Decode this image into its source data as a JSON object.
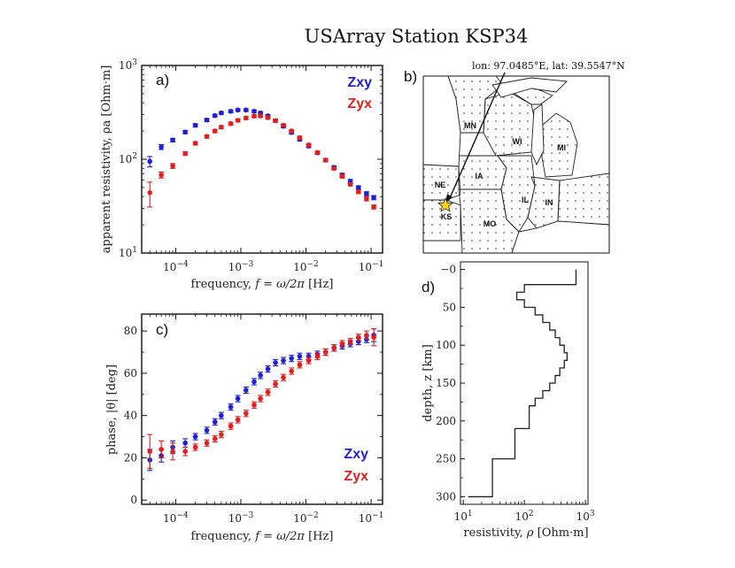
{
  "figure_title": "USArray Station KSP34",
  "colors": {
    "zxy": "#1f1fd6",
    "zyx": "#e11f1f"
  },
  "map": {
    "label": "b)",
    "coord_text": "lon: 97.0485°E, lat: 39.5547°N",
    "states": [
      "MN",
      "WI",
      "MI",
      "IA",
      "NE",
      "IL",
      "IN",
      "KS",
      "MO"
    ]
  },
  "chart_data": [
    {
      "id": "resistivity",
      "panel_label": "a)",
      "type": "scatter",
      "xscale": "log",
      "yscale": "log",
      "xlim": [
        3e-05,
        0.15
      ],
      "ylim": [
        10,
        1000
      ],
      "xticks": [
        0.0001,
        0.001,
        0.01,
        0.1
      ],
      "xtick_labels": [
        "10^-4",
        "10^-3",
        "10^-2",
        "10^-1"
      ],
      "yticks": [
        10,
        100,
        1000
      ],
      "ytick_labels": [
        "10^1",
        "10^2",
        "10^3"
      ],
      "xlabel_text": "frequency, ",
      "xlabel_var": "f = ω/2π",
      "xlabel_unit": " [Hz]",
      "ylabel": "apparent resistivity, ρa [Ohm·m]",
      "legend": [
        {
          "name": "Zxy",
          "color_key": "zxy"
        },
        {
          "name": "Zyx",
          "color_key": "zyx"
        }
      ],
      "series": [
        {
          "name": "Zxy",
          "color_key": "zxy",
          "x": [
            4e-05,
            6e-05,
            9e-05,
            0.00014,
            0.0002,
            0.0003,
            0.0004,
            0.0005,
            0.0007,
            0.0009,
            0.0012,
            0.0016,
            0.002,
            0.0026,
            0.0034,
            0.0045,
            0.006,
            0.008,
            0.011,
            0.015,
            0.02,
            0.027,
            0.036,
            0.048,
            0.064,
            0.085,
            0.11
          ],
          "y": [
            95,
            135,
            160,
            195,
            230,
            262,
            292,
            312,
            325,
            335,
            335,
            325,
            312,
            290,
            258,
            225,
            193,
            163,
            138,
            117,
            98,
            82,
            68,
            58,
            50,
            43,
            39
          ],
          "err": [
            12,
            8,
            7,
            8,
            9,
            10,
            10,
            10,
            11,
            11,
            11,
            10,
            10,
            9,
            9,
            8,
            7,
            6,
            5,
            4,
            4,
            3,
            3,
            3,
            2,
            2,
            2
          ]
        },
        {
          "name": "Zyx",
          "color_key": "zyx",
          "x": [
            4e-05,
            6e-05,
            9e-05,
            0.00014,
            0.0002,
            0.0003,
            0.0004,
            0.0005,
            0.0007,
            0.0009,
            0.0012,
            0.0016,
            0.002,
            0.0026,
            0.0034,
            0.0045,
            0.006,
            0.008,
            0.011,
            0.015,
            0.02,
            0.027,
            0.036,
            0.048,
            0.064,
            0.085,
            0.11
          ],
          "y": [
            44,
            68,
            85,
            115,
            148,
            175,
            200,
            220,
            240,
            260,
            275,
            288,
            290,
            278,
            258,
            230,
            200,
            170,
            142,
            118,
            98,
            80,
            66,
            54,
            45,
            38,
            31
          ],
          "err": [
            13,
            5,
            5,
            5,
            6,
            7,
            8,
            8,
            9,
            9,
            10,
            10,
            10,
            10,
            9,
            8,
            7,
            6,
            5,
            4,
            4,
            3,
            3,
            2,
            2,
            2,
            1.5
          ]
        }
      ]
    },
    {
      "id": "phase",
      "panel_label": "c)",
      "type": "scatter",
      "xscale": "log",
      "yscale": "linear",
      "xlim": [
        3e-05,
        0.15
      ],
      "ylim": [
        -2,
        88
      ],
      "xticks": [
        0.0001,
        0.001,
        0.01,
        0.1
      ],
      "xtick_labels": [
        "10^-4",
        "10^-3",
        "10^-2",
        "10^-1"
      ],
      "yticks": [
        0,
        20,
        40,
        60,
        80
      ],
      "ytick_labels": [
        "0",
        "20",
        "40",
        "60",
        "80"
      ],
      "xlabel_text": "frequency, ",
      "xlabel_var": "f = ω/2π",
      "xlabel_unit": " [Hz]",
      "ylabel": "phase, |θ| [deg]",
      "legend": [
        {
          "name": "Zxy",
          "color_key": "zxy"
        },
        {
          "name": "Zyx",
          "color_key": "zyx"
        }
      ],
      "series": [
        {
          "name": "Zxy",
          "color_key": "zxy",
          "x": [
            4e-05,
            6e-05,
            9e-05,
            0.00014,
            0.0002,
            0.0003,
            0.0004,
            0.0005,
            0.0007,
            0.0009,
            0.0012,
            0.0016,
            0.002,
            0.0026,
            0.0034,
            0.0045,
            0.006,
            0.008,
            0.011,
            0.015,
            0.02,
            0.027,
            0.036,
            0.048,
            0.064,
            0.085,
            0.11
          ],
          "y": [
            19,
            21,
            25,
            27,
            30,
            33,
            37,
            40,
            44,
            48,
            52,
            56,
            59,
            62,
            65,
            66,
            67,
            68,
            68,
            69,
            70,
            72,
            73,
            74,
            75,
            76,
            78
          ],
          "err": [
            5,
            3,
            3,
            2,
            1.5,
            1.5,
            1.5,
            1.5,
            1.5,
            1.5,
            1.5,
            1.5,
            1.5,
            1.5,
            1.5,
            1.5,
            1.5,
            1.5,
            1.5,
            1.5,
            1.5,
            1.5,
            1.5,
            1.5,
            1.5,
            1.5,
            3
          ]
        },
        {
          "name": "Zyx",
          "color_key": "zyx",
          "x": [
            4e-05,
            6e-05,
            9e-05,
            0.00014,
            0.0002,
            0.0003,
            0.0004,
            0.0005,
            0.0007,
            0.0009,
            0.0012,
            0.0016,
            0.002,
            0.0026,
            0.0034,
            0.0045,
            0.006,
            0.008,
            0.011,
            0.015,
            0.02,
            0.027,
            0.036,
            0.048,
            0.064,
            0.085,
            0.11
          ],
          "y": [
            23,
            24,
            23,
            23,
            25,
            27,
            29,
            31,
            35,
            38,
            41,
            45,
            48,
            51,
            55,
            58,
            61,
            64,
            66,
            68,
            70,
            72,
            74,
            75,
            77,
            78,
            77
          ],
          "err": [
            8,
            4,
            4,
            2,
            1.5,
            1.5,
            1.5,
            1.5,
            1.5,
            1.5,
            1.5,
            1.5,
            1.5,
            1.5,
            1.5,
            1.5,
            1.5,
            1.5,
            1.5,
            1.5,
            1.5,
            1.5,
            1.5,
            1.5,
            1.5,
            2,
            4
          ]
        }
      ]
    },
    {
      "id": "model",
      "panel_label": "d)",
      "type": "line",
      "xscale": "log",
      "yscale": "linear",
      "xlim": [
        9,
        1100
      ],
      "ylim": [
        310,
        -10
      ],
      "xticks": [
        10,
        100,
        1000
      ],
      "xtick_labels": [
        "10^1",
        "10^2",
        "10^3"
      ],
      "yticks": [
        0,
        50,
        100,
        150,
        200,
        250,
        300
      ],
      "ytick_labels": [
        "−0",
        "50",
        "100",
        "150",
        "200",
        "250",
        "300"
      ],
      "xlabel_text": "resistivity, ",
      "xlabel_var": "ρ",
      "xlabel_unit": " [Ohm·m]",
      "ylabel": "depth, z [km]",
      "series": [
        {
          "name": "model",
          "rho": [
            700,
            100,
            75,
            100,
            150,
            200,
            260,
            320,
            380,
            450,
            500,
            450,
            380,
            320,
            260,
            200,
            150,
            120,
            70,
            30,
            12
          ],
          "depth_top": [
            0,
            20,
            30,
            40,
            50,
            60,
            70,
            80,
            90,
            100,
            110,
            120,
            130,
            140,
            150,
            160,
            170,
            180,
            210,
            250,
            300
          ]
        }
      ]
    }
  ]
}
